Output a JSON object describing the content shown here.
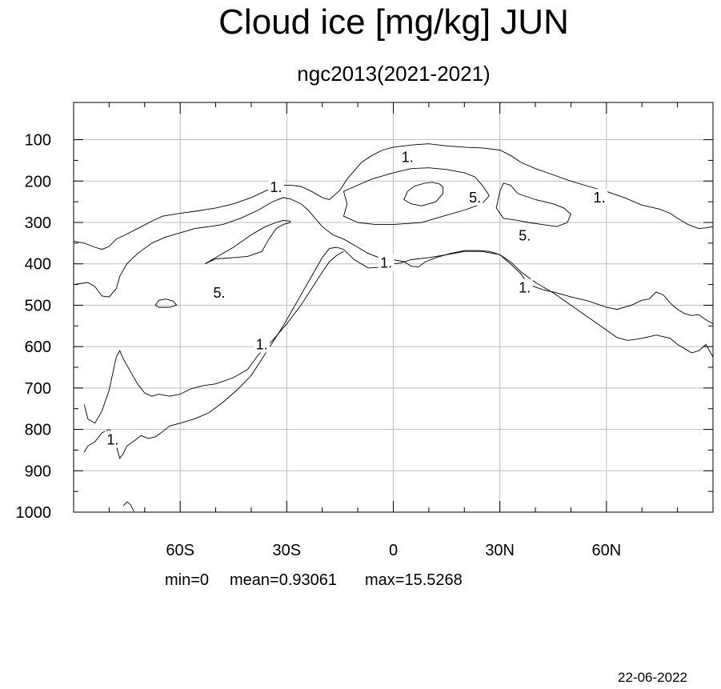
{
  "chart_data": {
    "type": "contour",
    "title": "Cloud ice [mg/kg] JUN",
    "subtitle": "ngc2013(2021-2021)",
    "x_ticks": [
      {
        "value": -60,
        "label": "60S"
      },
      {
        "value": -30,
        "label": "30S"
      },
      {
        "value": 0,
        "label": "0"
      },
      {
        "value": 30,
        "label": "30N"
      },
      {
        "value": 60,
        "label": "60N"
      }
    ],
    "y_ticks": [
      100,
      200,
      300,
      400,
      500,
      600,
      700,
      800,
      900,
      1000
    ],
    "xlim": [
      -90,
      90
    ],
    "ylim": [
      1000,
      10
    ],
    "grid": true,
    "contour_levels": [
      1,
      5
    ],
    "stats": {
      "min": "min=0",
      "mean": "mean=0.93061",
      "max": "max=15.5268"
    },
    "date": "22-06-2022",
    "contours": [
      {
        "level": 1,
        "points": [
          [
            -90,
            345
          ],
          [
            -87,
            350
          ],
          [
            -84,
            360
          ],
          [
            -82,
            365
          ],
          [
            -80,
            358
          ],
          [
            -78,
            340
          ],
          [
            -75,
            328
          ],
          [
            -72,
            315
          ],
          [
            -68,
            297
          ],
          [
            -65,
            285
          ],
          [
            -60,
            278
          ],
          [
            -55,
            272
          ],
          [
            -50,
            265
          ],
          [
            -45,
            255
          ],
          [
            -40,
            240
          ],
          [
            -35,
            220
          ],
          [
            -32,
            210
          ],
          [
            -29,
            210
          ],
          [
            -26,
            213
          ],
          [
            -23,
            225
          ],
          [
            -20,
            240
          ],
          [
            -18,
            245
          ],
          [
            -15,
            222
          ],
          [
            -13,
            195
          ],
          [
            -11,
            175
          ],
          [
            -9,
            155
          ],
          [
            -6,
            138
          ],
          [
            -3,
            125
          ],
          [
            0,
            118
          ],
          [
            3,
            115
          ],
          [
            6,
            112
          ],
          [
            10,
            110
          ],
          [
            15,
            115
          ],
          [
            20,
            118
          ],
          [
            25,
            120
          ],
          [
            30,
            125
          ],
          [
            33,
            138
          ],
          [
            36,
            155
          ],
          [
            40,
            170
          ],
          [
            45,
            185
          ],
          [
            50,
            200
          ],
          [
            55,
            213
          ],
          [
            60,
            225
          ],
          [
            65,
            240
          ],
          [
            70,
            258
          ],
          [
            72,
            262
          ],
          [
            75,
            268
          ],
          [
            78,
            278
          ],
          [
            80,
            290
          ],
          [
            83,
            305
          ],
          [
            86,
            315
          ],
          [
            88,
            313
          ],
          [
            90,
            310
          ]
        ]
      },
      {
        "level": 1,
        "points": [
          [
            -90,
            450
          ],
          [
            -86,
            445
          ],
          [
            -84,
            455
          ],
          [
            -82,
            478
          ],
          [
            -80,
            480
          ],
          [
            -78,
            460
          ],
          [
            -77,
            430
          ],
          [
            -75,
            400
          ],
          [
            -72,
            375
          ],
          [
            -68,
            350
          ],
          [
            -64,
            335
          ],
          [
            -60,
            325
          ],
          [
            -56,
            315
          ],
          [
            -52,
            310
          ],
          [
            -48,
            305
          ],
          [
            -43,
            290
          ],
          [
            -38,
            270
          ],
          [
            -34,
            250
          ],
          [
            -31,
            240
          ],
          [
            -29,
            243
          ],
          [
            -26,
            255
          ],
          [
            -24,
            270
          ],
          [
            -22,
            290
          ],
          [
            -20,
            310
          ],
          [
            -17,
            330
          ],
          [
            -14,
            340
          ],
          [
            -10,
            360
          ],
          [
            -7,
            375
          ],
          [
            -4,
            385
          ],
          [
            0,
            390
          ],
          [
            3,
            395
          ],
          [
            5,
            405
          ],
          [
            7,
            408
          ],
          [
            9,
            395
          ],
          [
            12,
            385
          ],
          [
            16,
            375
          ],
          [
            20,
            368
          ],
          [
            24,
            368
          ],
          [
            27,
            370
          ],
          [
            30,
            378
          ],
          [
            33,
            400
          ],
          [
            36,
            425
          ],
          [
            38,
            450
          ],
          [
            42,
            462
          ],
          [
            46,
            470
          ],
          [
            50,
            480
          ],
          [
            55,
            490
          ],
          [
            60,
            505
          ],
          [
            63,
            510
          ],
          [
            67,
            500
          ],
          [
            70,
            488
          ],
          [
            72,
            485
          ],
          [
            74,
            468
          ],
          [
            76,
            475
          ],
          [
            78,
            495
          ],
          [
            80,
            510
          ],
          [
            82,
            520
          ],
          [
            84,
            525
          ],
          [
            86,
            523
          ],
          [
            88,
            535
          ],
          [
            90,
            545
          ]
        ]
      },
      {
        "level": 1,
        "points": [
          [
            -87,
            855
          ],
          [
            -86,
            840
          ],
          [
            -84,
            830
          ],
          [
            -82,
            808
          ],
          [
            -80,
            800
          ],
          [
            -79,
            808
          ],
          [
            -78,
            840
          ],
          [
            -77,
            870
          ],
          [
            -76,
            858
          ],
          [
            -75,
            840
          ],
          [
            -73,
            828
          ],
          [
            -71,
            815
          ],
          [
            -69,
            822
          ],
          [
            -67,
            818
          ],
          [
            -65,
            806
          ],
          [
            -63,
            792
          ],
          [
            -60,
            785
          ],
          [
            -56,
            775
          ],
          [
            -52,
            760
          ],
          [
            -48,
            735
          ],
          [
            -44,
            705
          ],
          [
            -40,
            670
          ],
          [
            -37,
            630
          ],
          [
            -34,
            590
          ],
          [
            -31,
            550
          ],
          [
            -28,
            505
          ],
          [
            -25,
            460
          ],
          [
            -22,
            415
          ],
          [
            -20,
            385
          ],
          [
            -18,
            363
          ],
          [
            -16,
            360
          ],
          [
            -14,
            365
          ],
          [
            -11,
            390
          ],
          [
            -7,
            410
          ],
          [
            -3,
            408
          ],
          [
            0,
            400
          ],
          [
            2,
            398
          ],
          [
            5,
            390
          ],
          [
            10,
            385
          ],
          [
            15,
            378
          ],
          [
            20,
            370
          ],
          [
            25,
            370
          ],
          [
            30,
            378
          ],
          [
            33,
            395
          ],
          [
            36,
            420
          ],
          [
            40,
            445
          ],
          [
            45,
            470
          ],
          [
            50,
            500
          ],
          [
            55,
            530
          ],
          [
            60,
            560
          ],
          [
            63,
            578
          ],
          [
            66,
            585
          ],
          [
            70,
            580
          ],
          [
            74,
            572
          ],
          [
            78,
            580
          ],
          [
            80,
            595
          ],
          [
            82,
            605
          ],
          [
            84,
            615
          ],
          [
            86,
            610
          ],
          [
            88,
            595
          ],
          [
            90,
            625
          ]
        ]
      },
      {
        "level": 1,
        "points": [
          [
            -87,
            740
          ],
          [
            -86,
            775
          ],
          [
            -84,
            785
          ],
          [
            -82,
            755
          ],
          [
            -80,
            705
          ],
          [
            -78,
            625
          ],
          [
            -77,
            610
          ],
          [
            -76,
            630
          ],
          [
            -74,
            660
          ],
          [
            -72,
            690
          ],
          [
            -70,
            712
          ],
          [
            -68,
            720
          ],
          [
            -66,
            715
          ],
          [
            -63,
            720
          ],
          [
            -60,
            715
          ],
          [
            -57,
            702
          ],
          [
            -54,
            695
          ],
          [
            -50,
            690
          ],
          [
            -45,
            675
          ],
          [
            -41,
            655
          ],
          [
            -38,
            620
          ],
          [
            -34,
            585
          ],
          [
            -30,
            545
          ],
          [
            -26,
            500
          ],
          [
            -23,
            460
          ],
          [
            -20,
            420
          ],
          [
            -18,
            395
          ],
          [
            -16,
            380
          ],
          [
            -14,
            370
          ]
        ]
      },
      {
        "level": 1,
        "points": [
          [
            -76,
            985
          ],
          [
            -75,
            975
          ],
          [
            -74,
            982
          ],
          [
            -73,
            998
          ]
        ]
      },
      {
        "level": 5,
        "points": [
          [
            -53,
            400
          ],
          [
            -50,
            385
          ],
          [
            -45,
            360
          ],
          [
            -40,
            330
          ],
          [
            -36,
            310
          ],
          [
            -33,
            300
          ],
          [
            -31,
            295
          ],
          [
            -29,
            297
          ],
          [
            -29,
            300
          ],
          [
            -31,
            305
          ],
          [
            -33,
            315
          ],
          [
            -35,
            340
          ],
          [
            -37,
            370
          ],
          [
            -41,
            382
          ],
          [
            -45,
            385
          ],
          [
            -50,
            388
          ],
          [
            -53,
            400
          ]
        ]
      },
      {
        "level": 5,
        "points": [
          [
            -67,
            500
          ],
          [
            -66,
            488
          ],
          [
            -64,
            485
          ],
          [
            -62,
            490
          ],
          [
            -61,
            500
          ],
          [
            -63,
            505
          ],
          [
            -66,
            505
          ],
          [
            -67,
            500
          ]
        ]
      },
      {
        "level": 5,
        "points": [
          [
            -14,
            225
          ],
          [
            -10,
            210
          ],
          [
            -6,
            195
          ],
          [
            0,
            180
          ],
          [
            5,
            170
          ],
          [
            10,
            168
          ],
          [
            15,
            172
          ],
          [
            20,
            180
          ],
          [
            23,
            190
          ],
          [
            25,
            210
          ],
          [
            27,
            235
          ],
          [
            25,
            255
          ],
          [
            20,
            270
          ],
          [
            14,
            285
          ],
          [
            8,
            300
          ],
          [
            0,
            305
          ],
          [
            -5,
            305
          ],
          [
            -10,
            300
          ],
          [
            -14,
            285
          ],
          [
            -13,
            255
          ],
          [
            -14,
            225
          ]
        ]
      },
      {
        "level": 5,
        "points": [
          [
            4,
            225
          ],
          [
            6,
            212
          ],
          [
            9,
            205
          ],
          [
            11,
            203
          ],
          [
            13,
            207
          ],
          [
            14,
            215
          ],
          [
            14,
            230
          ],
          [
            12,
            250
          ],
          [
            8,
            260
          ],
          [
            5,
            255
          ],
          [
            3,
            245
          ],
          [
            4,
            225
          ]
        ]
      },
      {
        "level": 5,
        "points": [
          [
            29,
            265
          ],
          [
            30,
            225
          ],
          [
            31,
            205
          ],
          [
            33,
            210
          ],
          [
            35,
            230
          ],
          [
            40,
            245
          ],
          [
            45,
            255
          ],
          [
            48,
            265
          ],
          [
            50,
            280
          ],
          [
            49,
            300
          ],
          [
            46,
            310
          ],
          [
            42,
            305
          ],
          [
            38,
            300
          ],
          [
            35,
            295
          ],
          [
            31,
            290
          ],
          [
            29,
            265
          ]
        ]
      }
    ],
    "contour_labels": [
      {
        "text": "1.",
        "x": 4,
        "y": 142
      },
      {
        "text": "1.",
        "x": -33,
        "y": 215
      },
      {
        "text": "1.",
        "x": 58,
        "y": 240
      },
      {
        "text": "1.",
        "x": -2,
        "y": 398
      },
      {
        "text": "1.",
        "x": 37,
        "y": 458
      },
      {
        "text": "1.",
        "x": -37,
        "y": 595
      },
      {
        "text": "1.",
        "x": -79,
        "y": 825
      },
      {
        "text": "5.",
        "x": 23,
        "y": 240
      },
      {
        "text": "5.",
        "x": 37,
        "y": 332
      },
      {
        "text": "5.",
        "x": -49,
        "y": 470
      }
    ]
  }
}
